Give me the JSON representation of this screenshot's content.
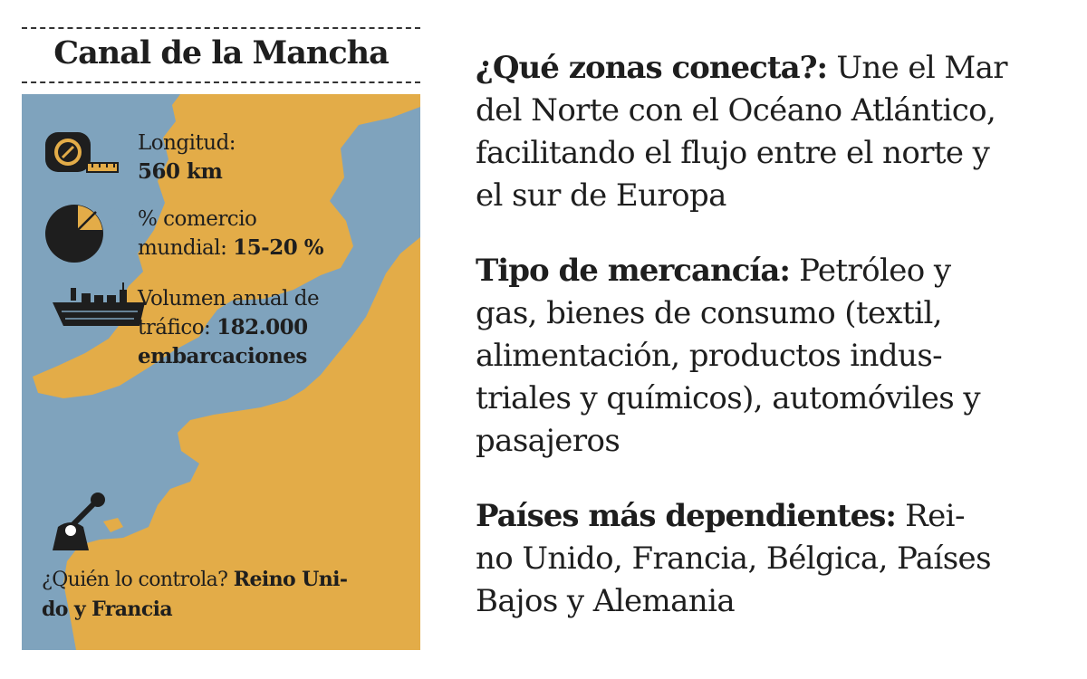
{
  "map": {
    "title": "Canal de la Mancha",
    "colors": {
      "sea": "#7fa3bd",
      "land": "#e3ac48",
      "ink": "#1e1e1e"
    },
    "stats": [
      {
        "icon": "measuring-tape-icon",
        "label": "Longitud:",
        "value": "560 km"
      },
      {
        "icon": "pie-chart-icon",
        "label": "% comercio",
        "label2": "mundial:",
        "value": "15-20 %"
      },
      {
        "icon": "cargo-ship-icon",
        "label": "Volumen anual de",
        "label2": "tráfico:",
        "value": "182.000",
        "value2": "embarcaciones"
      }
    ],
    "control": {
      "icon": "control-lever-icon",
      "question": "¿Quién lo controla?",
      "answer_part1": "Reino Uni-",
      "answer_part2": "do y Francia"
    }
  },
  "sections": [
    {
      "label": "¿Qué zonas conecta?:",
      "lines": [
        "Une el Mar",
        "del Norte con el Océano Atlántico,",
        "facilitando el flujo entre el norte y",
        "el sur de Europa"
      ]
    },
    {
      "label": "Tipo de mercancía:",
      "lines": [
        "Petróleo y",
        "gas, bienes de consumo (textil,",
        "alimentación, productos indus-",
        "triales y químicos), automóviles y",
        "pasajeros"
      ]
    },
    {
      "label": "Países más dependientes:",
      "lines": [
        "Rei-",
        "no Unido, Francia, Bélgica, Países",
        "Bajos y Alemania"
      ]
    }
  ]
}
